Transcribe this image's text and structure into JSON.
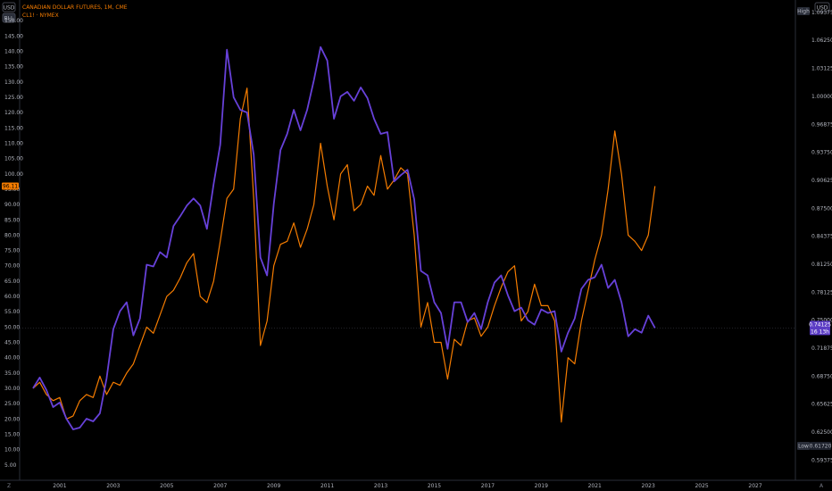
{
  "header": {
    "symbol_line": "CANADIAN DOLLAR FUTURES, 1M, CME",
    "compare_line": "CL1! · NYMEX",
    "left_scale_currency": "USD",
    "left_scale_unit": "BLL",
    "right_scale_currency": "USD"
  },
  "markers": {
    "high_label": "High",
    "low_label": "Low",
    "low_value": "0.61720",
    "oil_last": "96.11",
    "cad_last": "0.74125",
    "cad_countdown": "16 13h",
    "corner_left": "Z",
    "corner_right": "A"
  },
  "colors": {
    "cad": "#6741d9",
    "oil": "#f57c00",
    "background": "#000000",
    "text": "#b2b5be",
    "oil_badge": "#f57c00",
    "cad_badge": "#5b3cc4"
  },
  "chart_data": {
    "type": "line",
    "xlabel": "",
    "ylabel": "",
    "x_ticks": [
      "2001",
      "2003",
      "2005",
      "2007",
      "2009",
      "2011",
      "2013",
      "2015",
      "2017",
      "2019",
      "2021",
      "2023",
      "2025",
      "2027"
    ],
    "x_range": [
      2000.0,
      2029.0
    ],
    "left_axis": {
      "unit": "USD/BLL",
      "ticks": [
        "5.00",
        "10.00",
        "15.00",
        "20.00",
        "25.00",
        "30.00",
        "35.00",
        "40.00",
        "45.00",
        "50.00",
        "55.00",
        "60.00",
        "65.00",
        "70.00",
        "75.00",
        "80.00",
        "85.00",
        "90.00",
        "95.00",
        "100.00",
        "105.00",
        "110.00",
        "115.00",
        "120.00",
        "125.00",
        "130.00",
        "135.00",
        "140.00",
        "145.00",
        "150.00"
      ],
      "range": [
        0,
        155
      ]
    },
    "right_axis": {
      "unit": "USD",
      "ticks": [
        "0.59375",
        "0.62500",
        "0.65625",
        "0.68750",
        "0.71875",
        "0.75000",
        "0.78125",
        "0.81250",
        "0.84375",
        "0.87500",
        "0.90625",
        "0.93750",
        "0.96875",
        "1.00000",
        "1.03125",
        "1.06250",
        "1.09375"
      ],
      "range": [
        0.5712,
        1.1016
      ]
    },
    "series": [
      {
        "name": "CANADIAN DOLLAR FUTURES",
        "axis": "right",
        "points": [
          [
            2000.5,
            0.674
          ],
          [
            2000.75,
            0.686
          ],
          [
            2001.0,
            0.672
          ],
          [
            2001.25,
            0.653
          ],
          [
            2001.5,
            0.658
          ],
          [
            2001.75,
            0.64
          ],
          [
            2002.0,
            0.628
          ],
          [
            2002.25,
            0.63
          ],
          [
            2002.5,
            0.64
          ],
          [
            2002.75,
            0.637
          ],
          [
            2003.0,
            0.646
          ],
          [
            2003.25,
            0.685
          ],
          [
            2003.5,
            0.74
          ],
          [
            2003.75,
            0.76
          ],
          [
            2004.0,
            0.77
          ],
          [
            2004.25,
            0.733
          ],
          [
            2004.5,
            0.752
          ],
          [
            2004.75,
            0.812
          ],
          [
            2005.0,
            0.81
          ],
          [
            2005.25,
            0.826
          ],
          [
            2005.5,
            0.82
          ],
          [
            2005.75,
            0.855
          ],
          [
            2006.0,
            0.866
          ],
          [
            2006.25,
            0.878
          ],
          [
            2006.5,
            0.886
          ],
          [
            2006.75,
            0.878
          ],
          [
            2007.0,
            0.852
          ],
          [
            2007.25,
            0.902
          ],
          [
            2007.5,
            0.946
          ],
          [
            2007.75,
            1.052
          ],
          [
            2008.0,
            0.999
          ],
          [
            2008.25,
            0.985
          ],
          [
            2008.5,
            0.982
          ],
          [
            2008.75,
            0.935
          ],
          [
            2009.0,
            0.82
          ],
          [
            2009.25,
            0.8
          ],
          [
            2009.5,
            0.88
          ],
          [
            2009.75,
            0.94
          ],
          [
            2010.0,
            0.958
          ],
          [
            2010.25,
            0.985
          ],
          [
            2010.5,
            0.962
          ],
          [
            2010.75,
            0.985
          ],
          [
            2011.0,
            1.018
          ],
          [
            2011.25,
            1.055
          ],
          [
            2011.5,
            1.04
          ],
          [
            2011.75,
            0.975
          ],
          [
            2012.0,
            1.0
          ],
          [
            2012.25,
            1.005
          ],
          [
            2012.5,
            0.995
          ],
          [
            2012.75,
            1.01
          ],
          [
            2013.0,
            0.998
          ],
          [
            2013.25,
            0.975
          ],
          [
            2013.5,
            0.958
          ],
          [
            2013.75,
            0.96
          ],
          [
            2014.0,
            0.905
          ],
          [
            2014.25,
            0.912
          ],
          [
            2014.5,
            0.918
          ],
          [
            2014.75,
            0.885
          ],
          [
            2015.0,
            0.805
          ],
          [
            2015.25,
            0.8
          ],
          [
            2015.5,
            0.77
          ],
          [
            2015.75,
            0.758
          ],
          [
            2016.0,
            0.718
          ],
          [
            2016.25,
            0.77
          ],
          [
            2016.5,
            0.77
          ],
          [
            2016.75,
            0.748
          ],
          [
            2017.0,
            0.758
          ],
          [
            2017.25,
            0.74
          ],
          [
            2017.5,
            0.77
          ],
          [
            2017.75,
            0.792
          ],
          [
            2018.0,
            0.8
          ],
          [
            2018.25,
            0.778
          ],
          [
            2018.5,
            0.76
          ],
          [
            2018.75,
            0.764
          ],
          [
            2019.0,
            0.75
          ],
          [
            2019.25,
            0.745
          ],
          [
            2019.5,
            0.762
          ],
          [
            2019.75,
            0.758
          ],
          [
            2020.0,
            0.76
          ],
          [
            2020.25,
            0.715
          ],
          [
            2020.5,
            0.736
          ],
          [
            2020.75,
            0.752
          ],
          [
            2021.0,
            0.785
          ],
          [
            2021.25,
            0.795
          ],
          [
            2021.5,
            0.798
          ],
          [
            2021.75,
            0.812
          ],
          [
            2022.0,
            0.786
          ],
          [
            2022.25,
            0.795
          ],
          [
            2022.5,
            0.77
          ],
          [
            2022.75,
            0.732
          ],
          [
            2023.0,
            0.74
          ],
          [
            2023.25,
            0.736
          ],
          [
            2023.5,
            0.755
          ],
          [
            2023.75,
            0.7413
          ]
        ]
      },
      {
        "name": "CL1!",
        "axis": "left",
        "points": [
          [
            2000.5,
            30
          ],
          [
            2000.75,
            32
          ],
          [
            2001.0,
            28
          ],
          [
            2001.25,
            26
          ],
          [
            2001.5,
            27
          ],
          [
            2001.75,
            20
          ],
          [
            2002.0,
            21
          ],
          [
            2002.25,
            26
          ],
          [
            2002.5,
            28
          ],
          [
            2002.75,
            27
          ],
          [
            2003.0,
            34
          ],
          [
            2003.25,
            28
          ],
          [
            2003.5,
            32
          ],
          [
            2003.75,
            31
          ],
          [
            2004.0,
            35
          ],
          [
            2004.25,
            38
          ],
          [
            2004.5,
            44
          ],
          [
            2004.75,
            50
          ],
          [
            2005.0,
            48
          ],
          [
            2005.25,
            54
          ],
          [
            2005.5,
            60
          ],
          [
            2005.75,
            62
          ],
          [
            2006.0,
            66
          ],
          [
            2006.25,
            71
          ],
          [
            2006.5,
            74
          ],
          [
            2006.75,
            60
          ],
          [
            2007.0,
            58
          ],
          [
            2007.25,
            65
          ],
          [
            2007.5,
            78
          ],
          [
            2007.75,
            92
          ],
          [
            2008.0,
            95
          ],
          [
            2008.25,
            118
          ],
          [
            2008.5,
            128
          ],
          [
            2008.75,
            92
          ],
          [
            2009.0,
            44
          ],
          [
            2009.25,
            52
          ],
          [
            2009.5,
            70
          ],
          [
            2009.75,
            77
          ],
          [
            2010.0,
            78
          ],
          [
            2010.25,
            84
          ],
          [
            2010.5,
            76
          ],
          [
            2010.75,
            82
          ],
          [
            2011.0,
            90
          ],
          [
            2011.25,
            110
          ],
          [
            2011.5,
            96
          ],
          [
            2011.75,
            85
          ],
          [
            2012.0,
            100
          ],
          [
            2012.25,
            103
          ],
          [
            2012.5,
            88
          ],
          [
            2012.75,
            90
          ],
          [
            2013.0,
            96
          ],
          [
            2013.25,
            93
          ],
          [
            2013.5,
            106
          ],
          [
            2013.75,
            95
          ],
          [
            2014.0,
            98
          ],
          [
            2014.25,
            102
          ],
          [
            2014.5,
            100
          ],
          [
            2014.75,
            80
          ],
          [
            2015.0,
            50
          ],
          [
            2015.25,
            58
          ],
          [
            2015.5,
            45
          ],
          [
            2015.75,
            45
          ],
          [
            2016.0,
            33
          ],
          [
            2016.25,
            46
          ],
          [
            2016.5,
            44
          ],
          [
            2016.75,
            52
          ],
          [
            2017.0,
            53
          ],
          [
            2017.25,
            47
          ],
          [
            2017.5,
            50
          ],
          [
            2017.75,
            57
          ],
          [
            2018.0,
            63
          ],
          [
            2018.25,
            68
          ],
          [
            2018.5,
            70
          ],
          [
            2018.75,
            52
          ],
          [
            2019.0,
            55
          ],
          [
            2019.25,
            64
          ],
          [
            2019.5,
            57
          ],
          [
            2019.75,
            57
          ],
          [
            2020.0,
            52
          ],
          [
            2020.25,
            19
          ],
          [
            2020.5,
            40
          ],
          [
            2020.75,
            38
          ],
          [
            2021.0,
            52
          ],
          [
            2021.25,
            62
          ],
          [
            2021.5,
            72
          ],
          [
            2021.75,
            80
          ],
          [
            2022.0,
            95
          ],
          [
            2022.25,
            114
          ],
          [
            2022.5,
            100
          ],
          [
            2022.75,
            80
          ],
          [
            2023.0,
            78
          ],
          [
            2023.25,
            75
          ],
          [
            2023.5,
            80
          ],
          [
            2023.75,
            96
          ]
        ]
      }
    ],
    "grid": false,
    "legend": "top-left"
  }
}
